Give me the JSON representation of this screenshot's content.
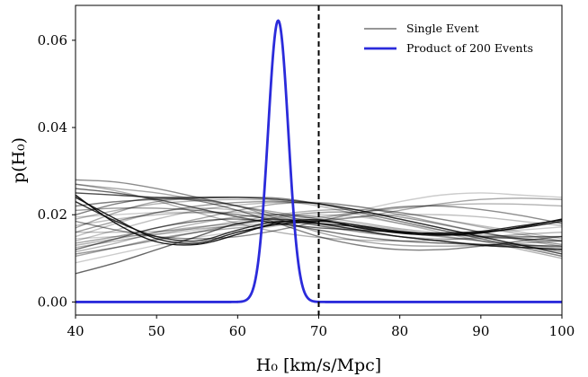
{
  "chart_data": {
    "type": "line",
    "title": "",
    "xlabel": "H₀ [km/s/Mpc]",
    "ylabel": "p(H₀)",
    "xlim": [
      40,
      100
    ],
    "ylim": [
      -0.003,
      0.068
    ],
    "xticks": [
      40,
      50,
      60,
      70,
      80,
      90,
      100
    ],
    "xtick_labels": [
      "40",
      "50",
      "60",
      "70",
      "80",
      "90",
      "100"
    ],
    "yticks": [
      0.0,
      0.02,
      0.04,
      0.06
    ],
    "ytick_labels": [
      "0.00",
      "0.02",
      "0.04",
      "0.06"
    ],
    "grid": false,
    "legend_position": "top-right",
    "reference_line": {
      "x": 70,
      "style": "dashed",
      "color": "#000000"
    },
    "single_event_x": [
      40,
      45,
      50,
      55,
      60,
      65,
      70,
      75,
      80,
      85,
      90,
      95,
      100
    ],
    "series": [
      {
        "name": "Single Event",
        "color": "#000000",
        "curves": [
          [
            0.0245,
            0.018,
            0.0138,
            0.0132,
            0.0155,
            0.0182,
            0.0188,
            0.017,
            0.0158,
            0.0153,
            0.0158,
            0.0172,
            0.019
          ],
          [
            0.024,
            0.019,
            0.0145,
            0.0135,
            0.016,
            0.0178,
            0.0185,
            0.0175,
            0.0162,
            0.0155,
            0.016,
            0.017,
            0.0185
          ],
          [
            0.023,
            0.0185,
            0.015,
            0.014,
            0.0165,
            0.0185,
            0.018,
            0.0172,
            0.016,
            0.0158,
            0.0162,
            0.0175,
            0.0188
          ],
          [
            0.012,
            0.0145,
            0.017,
            0.0185,
            0.019,
            0.018,
            0.0165,
            0.015,
            0.014,
            0.0135,
            0.0132,
            0.013,
            0.0128
          ],
          [
            0.0065,
            0.009,
            0.012,
            0.015,
            0.018,
            0.019,
            0.018,
            0.0165,
            0.015,
            0.014,
            0.013,
            0.0125,
            0.012
          ],
          [
            0.028,
            0.0275,
            0.026,
            0.024,
            0.022,
            0.02,
            0.018,
            0.0165,
            0.015,
            0.014,
            0.013,
            0.0125,
            0.012
          ],
          [
            0.027,
            0.026,
            0.025,
            0.0235,
            0.022,
            0.0205,
            0.019,
            0.0175,
            0.016,
            0.015,
            0.014,
            0.0132,
            0.0125
          ],
          [
            0.025,
            0.0245,
            0.024,
            0.024,
            0.024,
            0.0235,
            0.0225,
            0.021,
            0.019,
            0.017,
            0.015,
            0.013,
            0.011
          ],
          [
            0.022,
            0.023,
            0.0235,
            0.0238,
            0.024,
            0.0238,
            0.0225,
            0.0205,
            0.0185,
            0.0165,
            0.0145,
            0.0125,
            0.0105
          ],
          [
            0.019,
            0.021,
            0.0225,
            0.0232,
            0.0235,
            0.0232,
            0.022,
            0.02,
            0.018,
            0.016,
            0.014,
            0.012,
            0.01
          ],
          [
            0.016,
            0.0185,
            0.0205,
            0.022,
            0.0228,
            0.023,
            0.0225,
            0.021,
            0.019,
            0.017,
            0.015,
            0.013,
            0.0115
          ],
          [
            0.014,
            0.0165,
            0.019,
            0.021,
            0.0222,
            0.0228,
            0.0226,
            0.0218,
            0.0205,
            0.019,
            0.0175,
            0.016,
            0.0145
          ],
          [
            0.0105,
            0.0125,
            0.0145,
            0.016,
            0.017,
            0.0178,
            0.0185,
            0.0195,
            0.021,
            0.0225,
            0.0235,
            0.0238,
            0.0235
          ],
          [
            0.009,
            0.011,
            0.013,
            0.0148,
            0.0162,
            0.0175,
            0.019,
            0.021,
            0.023,
            0.0245,
            0.025,
            0.0245,
            0.024
          ],
          [
            0.013,
            0.0145,
            0.016,
            0.0172,
            0.018,
            0.0188,
            0.0195,
            0.0205,
            0.0215,
            0.0222,
            0.0225,
            0.0224,
            0.022
          ],
          [
            0.0185,
            0.0165,
            0.015,
            0.0145,
            0.015,
            0.0165,
            0.0185,
            0.0205,
            0.0218,
            0.022,
            0.0212,
            0.0198,
            0.018
          ],
          [
            0.02,
            0.0225,
            0.0238,
            0.0232,
            0.021,
            0.018,
            0.015,
            0.013,
            0.012,
            0.012,
            0.0128,
            0.014,
            0.015
          ],
          [
            0.017,
            0.0205,
            0.023,
            0.0235,
            0.022,
            0.019,
            0.016,
            0.014,
            0.013,
            0.0128,
            0.013,
            0.0135,
            0.014
          ],
          [
            0.015,
            0.018,
            0.0205,
            0.0215,
            0.021,
            0.0195,
            0.0175,
            0.016,
            0.015,
            0.0145,
            0.0145,
            0.0148,
            0.015
          ],
          [
            0.026,
            0.025,
            0.0235,
            0.0215,
            0.0195,
            0.018,
            0.017,
            0.0165,
            0.016,
            0.0155,
            0.015,
            0.0145,
            0.014
          ],
          [
            0.0125,
            0.014,
            0.0155,
            0.017,
            0.0185,
            0.02,
            0.021,
            0.0212,
            0.0205,
            0.019,
            0.0172,
            0.0155,
            0.014
          ],
          [
            0.011,
            0.0125,
            0.0142,
            0.016,
            0.0178,
            0.0195,
            0.0205,
            0.0205,
            0.0195,
            0.0178,
            0.016,
            0.0145,
            0.0132
          ],
          [
            0.0145,
            0.015,
            0.0155,
            0.0165,
            0.0178,
            0.0192,
            0.02,
            0.0195,
            0.018,
            0.0165,
            0.0155,
            0.015,
            0.015
          ],
          [
            0.027,
            0.0255,
            0.0232,
            0.0205,
            0.018,
            0.016,
            0.0148,
            0.0142,
            0.014,
            0.0142,
            0.0148,
            0.0155,
            0.016
          ],
          [
            0.0175,
            0.019,
            0.02,
            0.0205,
            0.0205,
            0.02,
            0.019,
            0.0178,
            0.0165,
            0.0152,
            0.014,
            0.013,
            0.0122
          ],
          [
            0.0135,
            0.015,
            0.017,
            0.019,
            0.021,
            0.0225,
            0.0228,
            0.0218,
            0.02,
            0.018,
            0.016,
            0.0142,
            0.0128
          ],
          [
            0.0195,
            0.02,
            0.0205,
            0.0205,
            0.02,
            0.019,
            0.0178,
            0.0168,
            0.016,
            0.0158,
            0.016,
            0.0165,
            0.0172
          ],
          [
            0.0115,
            0.0135,
            0.016,
            0.018,
            0.0195,
            0.02,
            0.0195,
            0.0182,
            0.0168,
            0.0158,
            0.0152,
            0.015,
            0.015
          ],
          [
            0.016,
            0.016,
            0.0162,
            0.0168,
            0.0175,
            0.0182,
            0.0188,
            0.0195,
            0.02,
            0.02,
            0.0195,
            0.0185,
            0.0175
          ],
          [
            0.021,
            0.0215,
            0.0215,
            0.021,
            0.02,
            0.0188,
            0.0175,
            0.0162,
            0.015,
            0.014,
            0.0132,
            0.0126,
            0.012
          ]
        ],
        "opacities": [
          0.9,
          0.85,
          0.8,
          0.55,
          0.6,
          0.45,
          0.35,
          0.7,
          0.5,
          0.3,
          0.4,
          0.25,
          0.35,
          0.2,
          0.3,
          0.45,
          0.5,
          0.35,
          0.25,
          0.6,
          0.3,
          0.4,
          0.2,
          0.3,
          0.25,
          0.35,
          0.2,
          0.3,
          0.25,
          0.4
        ]
      },
      {
        "name": "Product of 200 Events",
        "color": "#2b2bdb",
        "shape": "gaussian",
        "mean": 65,
        "sigma": 1.25,
        "peak": 0.0645
      }
    ]
  }
}
